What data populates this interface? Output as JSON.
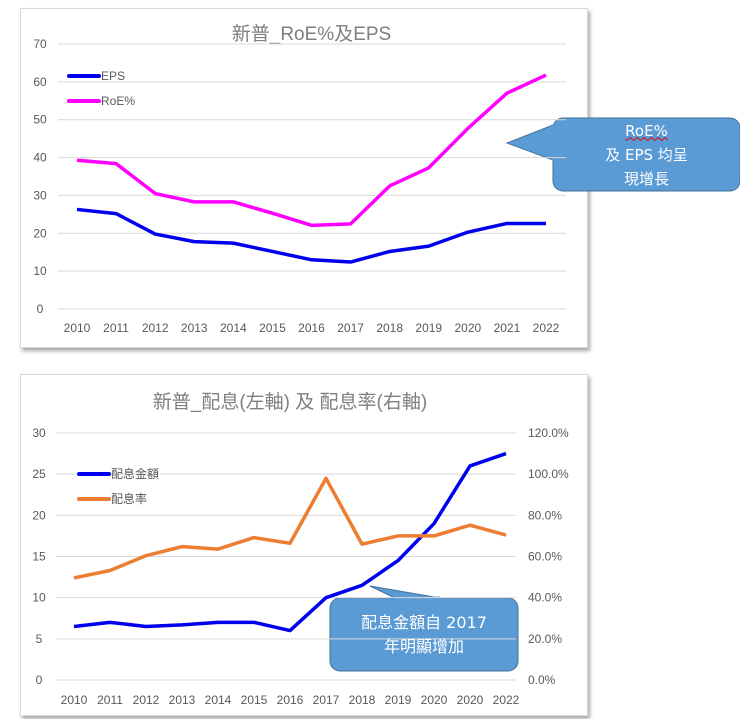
{
  "chart_data": [
    {
      "type": "line",
      "title": "新普_RoE%及EPS",
      "categories": [
        "2010",
        "2011",
        "2012",
        "2013",
        "2014",
        "2015",
        "2016",
        "2017",
        "2018",
        "2019",
        "2020",
        "2021",
        "2022"
      ],
      "ylim": [
        0,
        70
      ],
      "yticks": [
        "0",
        "10",
        "20",
        "30",
        "40",
        "50",
        "60",
        "70"
      ],
      "grid": true,
      "legend": "top-left",
      "series": [
        {
          "name": "EPS",
          "color": "#0000ee",
          "values": [
            26.3,
            25.2,
            19.8,
            17.8,
            17.4,
            15.2,
            13.0,
            12.4,
            15.2,
            16.6,
            20.3,
            22.6,
            22.6
          ]
        },
        {
          "name": "RoE%",
          "color": "#ff00ff",
          "values": [
            39.3,
            38.4,
            30.5,
            28.3,
            28.3,
            25.3,
            22.1,
            22.5,
            32.5,
            37.3,
            47.7,
            57.0,
            61.8
          ]
        }
      ],
      "annotation": {
        "line1": "RoE%及 EPS 均呈",
        "line1_a": "RoE%",
        "line1_b": "及 EPS 均呈",
        "line2": "現增長"
      }
    },
    {
      "type": "line",
      "title": "新普_配息(左軸) 及 配息率(右軸)",
      "categories": [
        "2010",
        "2011",
        "2012",
        "2013",
        "2014",
        "2015",
        "2016",
        "2017",
        "2018",
        "2019",
        "2020",
        "2020",
        "2022"
      ],
      "ylim": [
        0,
        30
      ],
      "yticks": [
        "0",
        "5",
        "10",
        "15",
        "20",
        "25",
        "30"
      ],
      "y2lim": [
        0,
        120
      ],
      "y2ticks": [
        "0.0%",
        "",
        "20.0%",
        "",
        "40.0%",
        "",
        "60.0%",
        "",
        "80.0%",
        "",
        "100.0%",
        "",
        "120.0%"
      ],
      "y2ticks_visible": [
        "0.0%",
        "60.0%",
        "80.0%",
        "100.0%",
        "120.0%"
      ],
      "grid": true,
      "legend": "top-left",
      "series": [
        {
          "name": "配息金額",
          "axis": "left",
          "color": "#0000ee",
          "values": [
            6.5,
            7.0,
            6.5,
            6.7,
            7.0,
            7.0,
            6.0,
            10.0,
            11.5,
            14.5,
            19.0,
            26.0,
            27.5
          ]
        },
        {
          "name": "配息率",
          "axis": "right",
          "color": "#ed7d31",
          "values": [
            49.6,
            53.2,
            60.4,
            64.8,
            63.6,
            69.2,
            66.4,
            98.0,
            66.0,
            70.0,
            70.0,
            75.2,
            70.4
          ]
        }
      ],
      "annotation": {
        "line1": "配息金額自 2017",
        "line2": "年明顯增加"
      }
    }
  ],
  "callout_color": "#5b9bd5"
}
